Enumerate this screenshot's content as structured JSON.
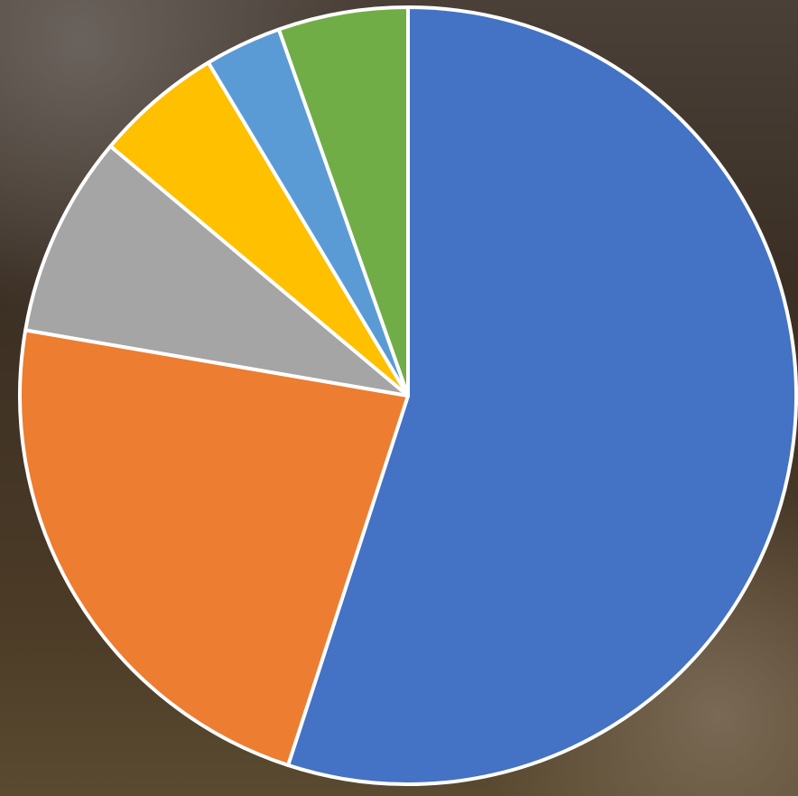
{
  "chart_data": {
    "type": "pie",
    "values": [
      55,
      22.7,
      8.4,
      5.3,
      3.2,
      5.4
    ],
    "colors": [
      "#4472c4",
      "#ed7d31",
      "#a5a5a5",
      "#ffc000",
      "#5b9bd5",
      "#70ad47"
    ],
    "start_angle": 0,
    "direction": "clockwise"
  }
}
